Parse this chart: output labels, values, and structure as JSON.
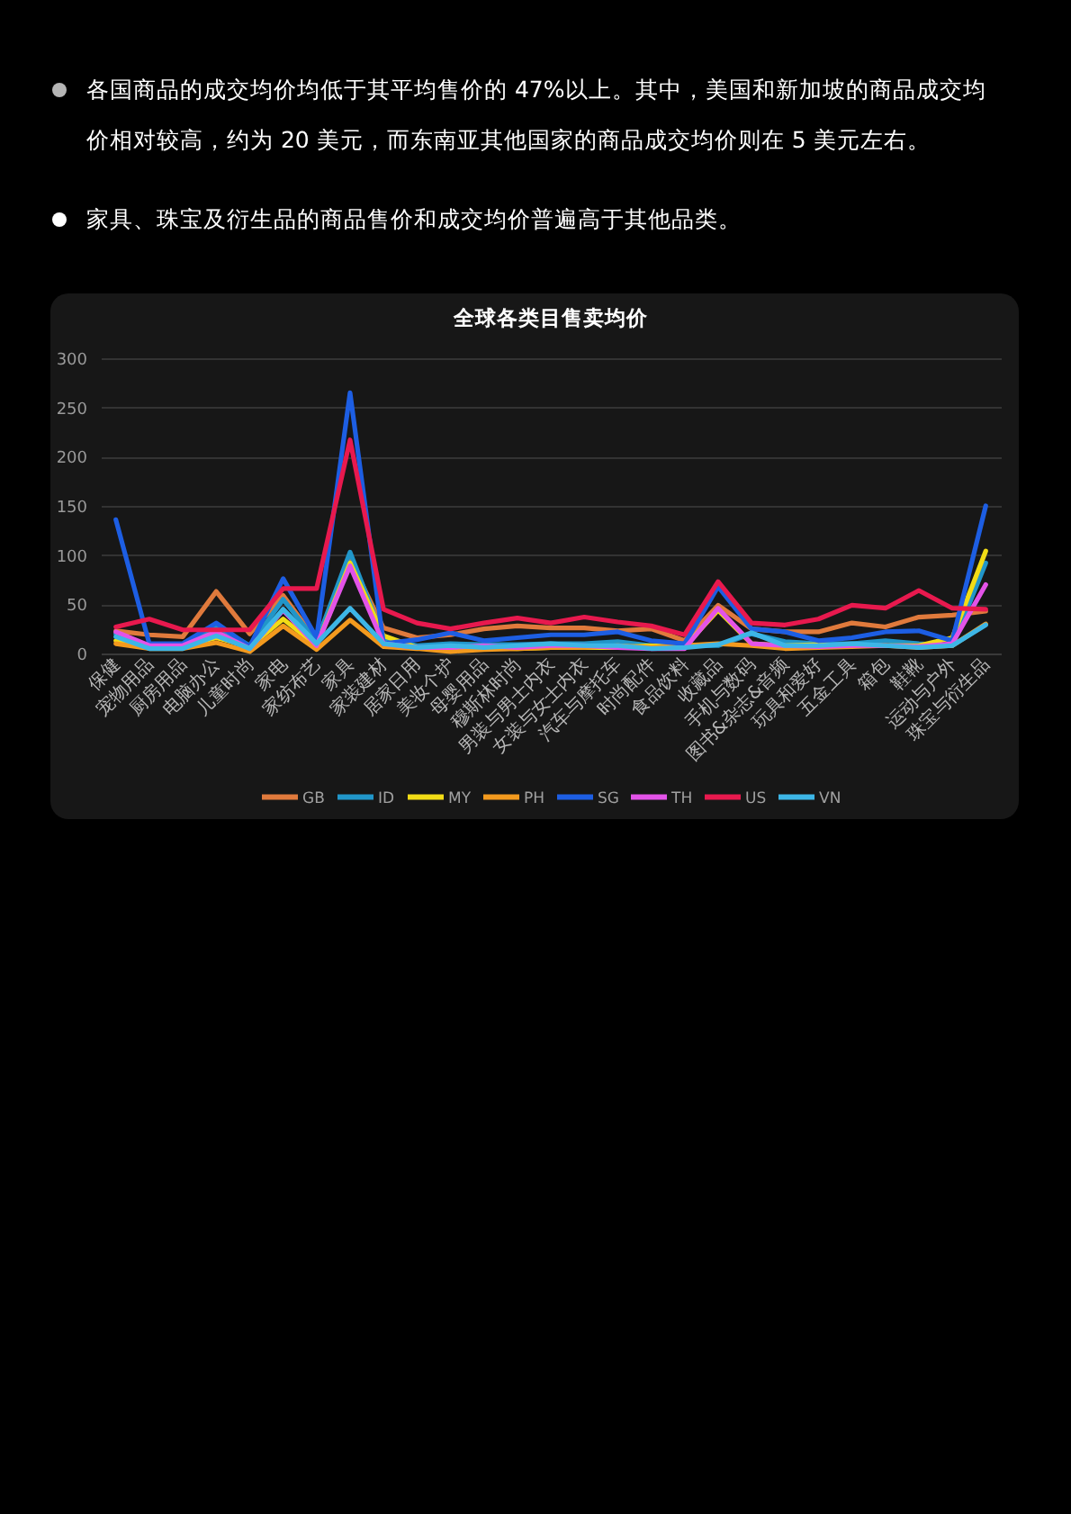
{
  "chart_data": {
    "type": "line",
    "title": "全球各类目售卖均价",
    "annotations": [
      "各国商品的成交均价均低于其平均售价的 47%以上。其中，美国和新加坡的商品成交均价相对较高，约为 20 美元，而东南亚其他国家的商品成交均价则在 5 美元左右。",
      "家具、珠宝及衍生品的商品售价和成交均价普遍高于其他品类。"
    ],
    "categories": [
      "保健",
      "宠物用品",
      "厨房用品",
      "电脑办公",
      "儿童时尚",
      "家电",
      "家纺布艺",
      "家具",
      "家装建材",
      "居家日用",
      "美妆个护",
      "母婴用品",
      "穆斯林时尚",
      "男装与男士内衣",
      "女装与女士内衣",
      "汽车与摩托车",
      "时尚配件",
      "食品饮料",
      "收藏品",
      "手机与数码",
      "图书&杂志&音频",
      "玩具和爱好",
      "五金工具",
      "箱包",
      "鞋靴",
      "运动与户外",
      "珠宝与衍生品"
    ],
    "series": [
      {
        "name": "GB",
        "color": "#e07a3c",
        "values": [
          23,
          19,
          17,
          63,
          20,
          59,
          13,
          95,
          26,
          16,
          19,
          25,
          28,
          26,
          26,
          23,
          25,
          13,
          49,
          25,
          22,
          22,
          31,
          27,
          37,
          39,
          43
        ]
      },
      {
        "name": "ID",
        "color": "#2196c9",
        "values": [
          20,
          7,
          7,
          28,
          8,
          55,
          12,
          103,
          15,
          8,
          10,
          9,
          9,
          10,
          10,
          12,
          8,
          8,
          8,
          20,
          12,
          10,
          10,
          13,
          10,
          8,
          92
        ]
      },
      {
        "name": "MY",
        "color": "#f2dc16",
        "values": [
          13,
          7,
          7,
          16,
          7,
          35,
          8,
          92,
          18,
          6,
          5,
          6,
          5,
          6,
          6,
          6,
          8,
          7,
          44,
          10,
          8,
          9,
          8,
          8,
          8,
          16,
          104
        ]
      },
      {
        "name": "PH",
        "color": "#f39a1e",
        "values": [
          10,
          5,
          5,
          11,
          2,
          28,
          4,
          34,
          7,
          5,
          2,
          4,
          5,
          6,
          6,
          8,
          6,
          8,
          10,
          8,
          5,
          6,
          7,
          8,
          6,
          8,
          30
        ]
      },
      {
        "name": "SG",
        "color": "#1d5ee3",
        "values": [
          136,
          10,
          10,
          31,
          7,
          76,
          16,
          265,
          10,
          14,
          21,
          13,
          16,
          19,
          19,
          22,
          13,
          10,
          68,
          25,
          22,
          13,
          16,
          22,
          23,
          13,
          150
        ]
      },
      {
        "name": "TH",
        "color": "#e353e8",
        "values": [
          22,
          8,
          8,
          22,
          5,
          44,
          8,
          89,
          10,
          6,
          6,
          8,
          6,
          8,
          8,
          6,
          5,
          5,
          46,
          10,
          8,
          7,
          8,
          8,
          7,
          10,
          70
        ]
      },
      {
        "name": "US",
        "color": "#e8194e",
        "values": [
          27,
          35,
          24,
          24,
          24,
          66,
          66,
          217,
          45,
          31,
          25,
          31,
          36,
          31,
          37,
          32,
          28,
          19,
          73,
          31,
          29,
          35,
          49,
          46,
          64,
          46,
          45
        ]
      },
      {
        "name": "VN",
        "color": "#3db6e6",
        "values": [
          17,
          5,
          5,
          18,
          5,
          45,
          10,
          46,
          10,
          6,
          8,
          6,
          8,
          10,
          8,
          8,
          5,
          6,
          9,
          21,
          8,
          8,
          10,
          8,
          6,
          8,
          29
        ]
      }
    ],
    "ylim": [
      0,
      300
    ],
    "yticks": [
      0,
      50,
      100,
      150,
      200,
      250,
      300
    ],
    "grid": "y",
    "legend": "bottom"
  }
}
